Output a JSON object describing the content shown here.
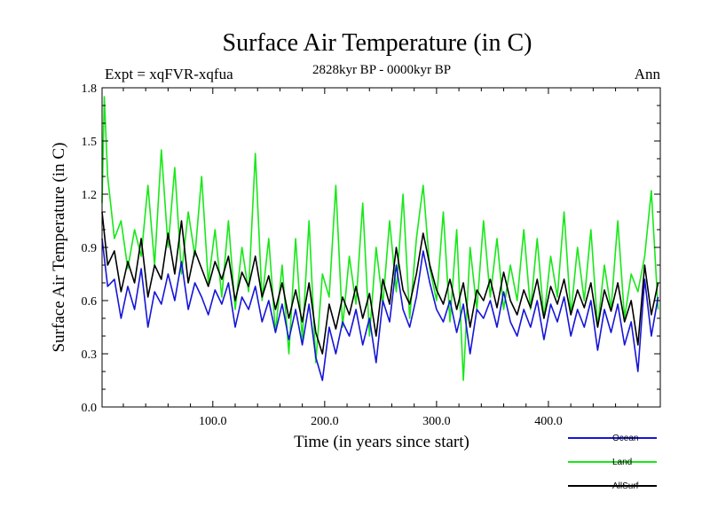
{
  "chart_data": {
    "type": "line",
    "title": "Surface Air Temperature (in C)",
    "subtitle": "2828kyr BP - 0000kyr BP",
    "experiment": "Expt = xqFVR-xqfua",
    "season": "Ann",
    "xlabel": "Time (in years since start)",
    "ylabel": "Surface Air Temperature (in C)",
    "xlim": [
      1,
      500
    ],
    "ylim": [
      0.0,
      1.8
    ],
    "x_ticks": [
      100,
      200,
      300,
      400
    ],
    "x_tick_labels": [
      "100.0",
      "200.0",
      "300.0",
      "400.0"
    ],
    "y_ticks": [
      0.0,
      0.3,
      0.6,
      0.9,
      1.2,
      1.5,
      1.8
    ],
    "y_tick_labels": [
      "0.0",
      "0.3",
      "0.6",
      "0.9",
      "1.2",
      "1.5",
      "1.8"
    ],
    "legend_position": "bottom-right",
    "series": [
      {
        "name": "Ocean",
        "color": "#1515d8",
        "x": [
          1,
          6,
          12,
          18,
          24,
          30,
          36,
          42,
          48,
          54,
          60,
          66,
          72,
          78,
          84,
          90,
          96,
          102,
          108,
          114,
          120,
          126,
          132,
          138,
          144,
          150,
          156,
          162,
          168,
          174,
          180,
          186,
          192,
          198,
          204,
          210,
          216,
          222,
          228,
          234,
          240,
          246,
          252,
          258,
          264,
          270,
          276,
          282,
          288,
          294,
          300,
          306,
          312,
          318,
          324,
          330,
          336,
          342,
          348,
          354,
          360,
          366,
          372,
          378,
          384,
          390,
          396,
          402,
          408,
          414,
          420,
          426,
          432,
          438,
          444,
          450,
          456,
          462,
          468,
          474,
          480,
          486,
          492,
          498
        ],
        "values": [
          0.95,
          0.68,
          0.72,
          0.5,
          0.68,
          0.55,
          0.78,
          0.45,
          0.65,
          0.58,
          0.75,
          0.6,
          0.82,
          0.55,
          0.7,
          0.62,
          0.52,
          0.66,
          0.58,
          0.7,
          0.45,
          0.62,
          0.55,
          0.68,
          0.48,
          0.6,
          0.42,
          0.58,
          0.38,
          0.55,
          0.35,
          0.58,
          0.28,
          0.15,
          0.45,
          0.3,
          0.48,
          0.4,
          0.55,
          0.35,
          0.5,
          0.25,
          0.6,
          0.48,
          0.8,
          0.55,
          0.45,
          0.62,
          0.88,
          0.7,
          0.55,
          0.48,
          0.6,
          0.42,
          0.58,
          0.3,
          0.55,
          0.5,
          0.6,
          0.45,
          0.65,
          0.48,
          0.4,
          0.55,
          0.45,
          0.6,
          0.38,
          0.58,
          0.48,
          0.62,
          0.4,
          0.55,
          0.45,
          0.6,
          0.32,
          0.55,
          0.42,
          0.58,
          0.35,
          0.48,
          0.2,
          0.72,
          0.4,
          0.62
        ]
      },
      {
        "name": "Land",
        "color": "#18e818",
        "x": [
          1,
          3,
          6,
          12,
          18,
          24,
          30,
          36,
          42,
          48,
          54,
          60,
          66,
          72,
          78,
          84,
          90,
          96,
          102,
          108,
          114,
          120,
          126,
          132,
          138,
          144,
          150,
          156,
          162,
          168,
          174,
          180,
          186,
          192,
          198,
          204,
          210,
          216,
          222,
          228,
          234,
          240,
          246,
          252,
          258,
          264,
          270,
          276,
          282,
          288,
          294,
          300,
          306,
          312,
          318,
          324,
          330,
          336,
          342,
          348,
          354,
          360,
          366,
          372,
          378,
          384,
          390,
          396,
          402,
          408,
          414,
          420,
          426,
          432,
          438,
          444,
          450,
          456,
          462,
          468,
          474,
          480,
          486,
          492,
          498
        ],
        "values": [
          1.15,
          1.75,
          1.3,
          0.95,
          1.05,
          0.78,
          1.0,
          0.85,
          1.25,
          0.8,
          1.45,
          0.9,
          1.35,
          0.75,
          1.1,
          0.85,
          1.3,
          0.7,
          1.0,
          0.62,
          1.05,
          0.55,
          0.9,
          0.65,
          1.43,
          0.6,
          0.95,
          0.42,
          0.8,
          0.3,
          0.95,
          0.38,
          1.05,
          0.25,
          0.75,
          0.62,
          1.25,
          0.45,
          0.85,
          0.58,
          1.15,
          0.4,
          0.9,
          0.58,
          1.05,
          0.65,
          1.2,
          0.5,
          0.95,
          1.25,
          0.78,
          0.6,
          1.1,
          0.48,
          1.0,
          0.15,
          0.9,
          0.55,
          1.05,
          0.62,
          0.95,
          0.55,
          0.8,
          0.6,
          1.0,
          0.55,
          0.95,
          0.5,
          0.85,
          0.62,
          1.1,
          0.52,
          0.9,
          0.6,
          1.0,
          0.45,
          0.8,
          0.55,
          1.05,
          0.5,
          0.75,
          0.65,
          0.85,
          1.22,
          0.55
        ]
      },
      {
        "name": "AllSurf",
        "color": "#000000",
        "x": [
          1,
          6,
          12,
          18,
          24,
          30,
          36,
          42,
          48,
          54,
          60,
          66,
          72,
          78,
          84,
          90,
          96,
          102,
          108,
          114,
          120,
          126,
          132,
          138,
          144,
          150,
          156,
          162,
          168,
          174,
          180,
          186,
          192,
          198,
          204,
          210,
          216,
          222,
          228,
          234,
          240,
          246,
          252,
          258,
          264,
          270,
          276,
          282,
          288,
          294,
          300,
          306,
          312,
          318,
          324,
          330,
          336,
          342,
          348,
          354,
          360,
          366,
          372,
          378,
          384,
          390,
          396,
          402,
          408,
          414,
          420,
          426,
          432,
          438,
          444,
          450,
          456,
          462,
          468,
          474,
          480,
          486,
          492,
          498
        ],
        "values": [
          1.1,
          0.8,
          0.88,
          0.65,
          0.82,
          0.7,
          0.95,
          0.62,
          0.8,
          0.72,
          0.98,
          0.75,
          1.05,
          0.7,
          0.88,
          0.78,
          0.68,
          0.82,
          0.72,
          0.85,
          0.6,
          0.76,
          0.68,
          0.85,
          0.62,
          0.74,
          0.55,
          0.7,
          0.5,
          0.66,
          0.48,
          0.7,
          0.42,
          0.3,
          0.58,
          0.44,
          0.62,
          0.52,
          0.68,
          0.5,
          0.64,
          0.4,
          0.72,
          0.58,
          0.9,
          0.66,
          0.58,
          0.75,
          0.98,
          0.8,
          0.66,
          0.58,
          0.72,
          0.55,
          0.7,
          0.45,
          0.66,
          0.6,
          0.72,
          0.56,
          0.76,
          0.6,
          0.52,
          0.66,
          0.56,
          0.72,
          0.5,
          0.68,
          0.58,
          0.72,
          0.52,
          0.66,
          0.56,
          0.7,
          0.45,
          0.66,
          0.54,
          0.7,
          0.48,
          0.6,
          0.35,
          0.8,
          0.52,
          0.7
        ]
      }
    ]
  }
}
